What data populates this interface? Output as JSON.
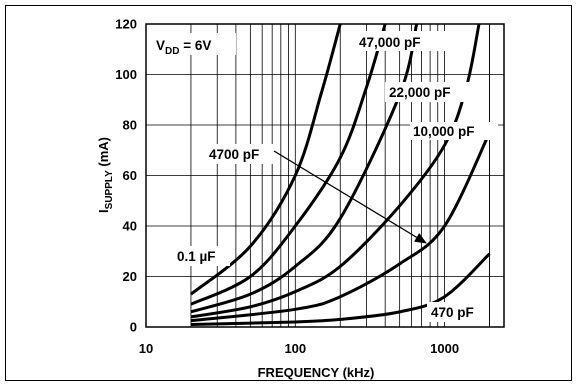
{
  "chart_data": {
    "type": "line",
    "xscale": "log",
    "xlim": [
      10,
      2500
    ],
    "ylim": [
      0,
      120
    ],
    "xticks": [
      10,
      100,
      1000
    ],
    "yticks": [
      0,
      20,
      40,
      60,
      80,
      100,
      120
    ],
    "xlabel": "FREQUENCY (kHz)",
    "ylabel_main": "I",
    "ylabel_sub": "SUPPLY",
    "ylabel_unit": " (mA)",
    "condition_main": "V",
    "condition_sub": "DD",
    "condition_value": " = 6V",
    "grid": true,
    "series": [
      {
        "name": "0.1 µF",
        "points": [
          [
            20,
            13
          ],
          [
            50,
            32
          ],
          [
            100,
            60
          ],
          [
            150,
            93
          ],
          [
            200,
            120
          ]
        ]
      },
      {
        "name": "47,000 pF",
        "points": [
          [
            20,
            9
          ],
          [
            50,
            20
          ],
          [
            100,
            40
          ],
          [
            200,
            67
          ],
          [
            300,
            95
          ],
          [
            400,
            120
          ]
        ]
      },
      {
        "name": "22,000 pF",
        "points": [
          [
            20,
            6
          ],
          [
            50,
            13
          ],
          [
            100,
            24
          ],
          [
            200,
            43
          ],
          [
            500,
            92
          ],
          [
            650,
            120
          ]
        ]
      },
      {
        "name": "10,000 pF",
        "points": [
          [
            20,
            4
          ],
          [
            50,
            8
          ],
          [
            100,
            14
          ],
          [
            200,
            24
          ],
          [
            500,
            48
          ],
          [
            1000,
            72
          ],
          [
            1400,
            95
          ],
          [
            1700,
            120
          ]
        ]
      },
      {
        "name": "4700 pF",
        "points": [
          [
            20,
            2.5
          ],
          [
            100,
            7
          ],
          [
            200,
            12
          ],
          [
            500,
            25
          ],
          [
            1000,
            40
          ],
          [
            2000,
            77
          ]
        ]
      },
      {
        "name": "470 pF",
        "points": [
          [
            20,
            1
          ],
          [
            100,
            2
          ],
          [
            200,
            3
          ],
          [
            500,
            6
          ],
          [
            1000,
            12
          ],
          [
            2000,
            29
          ]
        ]
      }
    ],
    "labels": {
      "condition": "V_DD = 6V",
      "series_47000": "47,000 pF",
      "series_22000": "22,000 pF",
      "series_10000": "10,000 pF",
      "series_4700": "4700 pF",
      "series_01uf": "0.1 µF",
      "series_470": "470 pF"
    }
  }
}
